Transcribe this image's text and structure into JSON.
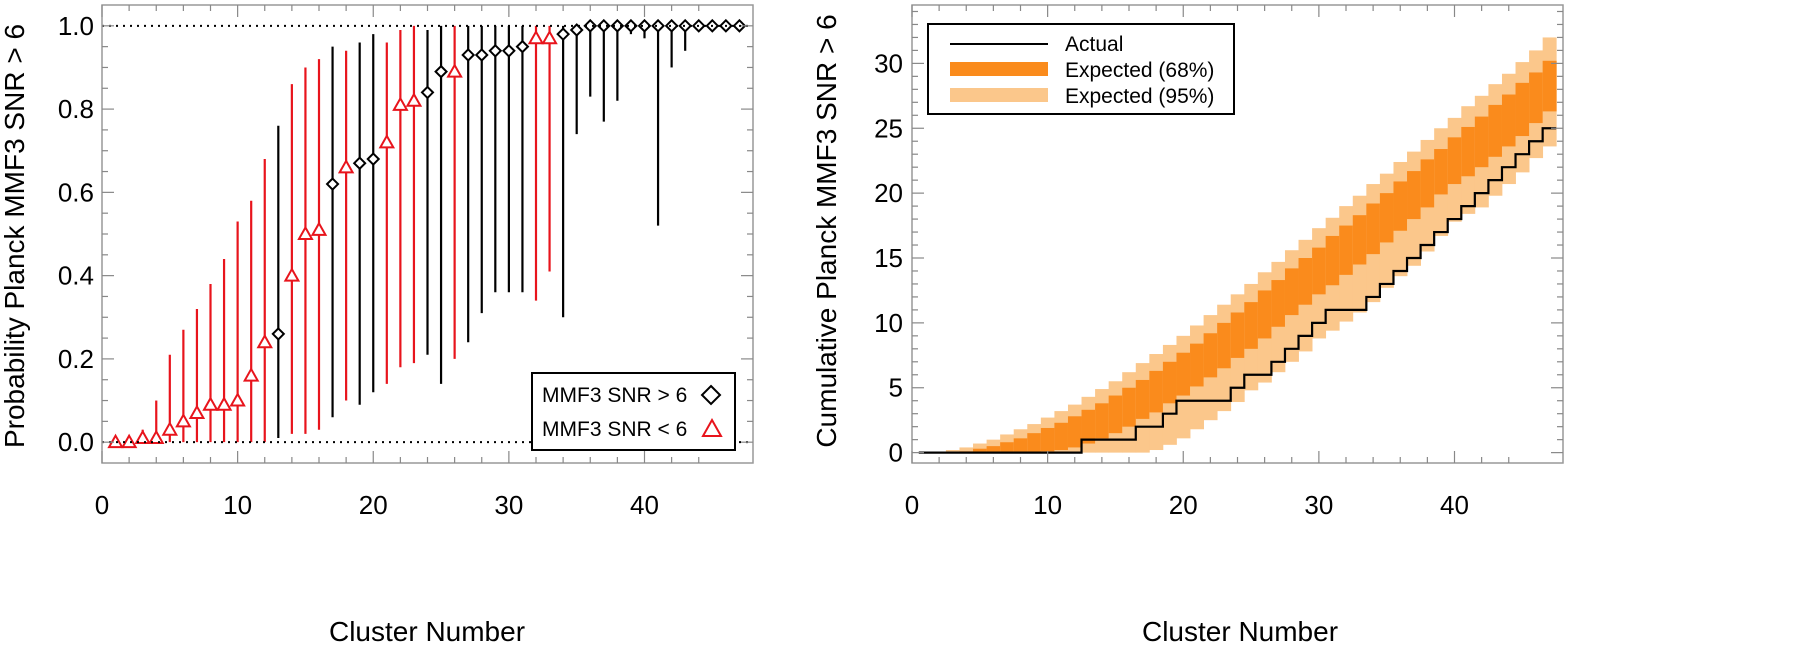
{
  "chart_data": [
    {
      "type": "scatter",
      "xlabel": "Cluster Number",
      "ylabel": "Probability Planck MMF3 SNR > 6",
      "xlim": [
        0,
        48
      ],
      "ylim": [
        -0.05,
        1.05
      ],
      "xticks": [
        "0",
        "10",
        "20",
        "30",
        "40"
      ],
      "yticks": [
        "0.0",
        "0.2",
        "0.4",
        "0.6",
        "0.8",
        "1.0"
      ],
      "reference_lines": [
        0,
        1
      ],
      "colors": {
        "above": "#000000",
        "below": "#e8141c"
      },
      "series": [
        {
          "name": "MMF3 SNR > 6",
          "marker": "diamond",
          "x": [
            13,
            17,
            19,
            20,
            24,
            25,
            27,
            28,
            29,
            30,
            31,
            34,
            35,
            36,
            37,
            38,
            39,
            40,
            41,
            42,
            43,
            44,
            45,
            46,
            47
          ],
          "y": [
            0.26,
            0.62,
            0.67,
            0.68,
            0.84,
            0.89,
            0.93,
            0.93,
            0.94,
            0.94,
            0.95,
            0.98,
            0.99,
            1.0,
            1.0,
            1.0,
            1.0,
            1.0,
            1.0,
            1.0,
            1.0,
            1.0,
            1.0,
            1.0,
            1.0
          ],
          "lo": [
            0.01,
            0.06,
            0.09,
            0.12,
            0.21,
            0.14,
            0.24,
            0.31,
            0.36,
            0.36,
            0.36,
            0.3,
            0.74,
            0.83,
            0.77,
            0.82,
            0.98,
            0.97,
            0.52,
            0.9,
            0.94,
            1.0,
            1.0,
            1.0,
            1.0
          ],
          "hi": [
            0.76,
            0.95,
            0.96,
            0.98,
            0.99,
            1.0,
            1.0,
            1.0,
            1.0,
            1.0,
            1.0,
            1.0,
            1.0,
            1.0,
            1.0,
            1.0,
            1.0,
            1.0,
            1.0,
            1.0,
            1.0,
            1.0,
            1.0,
            1.0,
            1.0
          ]
        },
        {
          "name": "MMF3 SNR < 6",
          "marker": "triangle",
          "x": [
            1,
            2,
            3,
            4,
            5,
            6,
            7,
            8,
            9,
            10,
            11,
            12,
            14,
            15,
            16,
            18,
            21,
            22,
            23,
            26,
            32,
            33
          ],
          "y": [
            0.0,
            0.0,
            0.01,
            0.01,
            0.03,
            0.05,
            0.07,
            0.09,
            0.09,
            0.1,
            0.16,
            0.24,
            0.4,
            0.5,
            0.51,
            0.66,
            0.72,
            0.81,
            0.82,
            0.89,
            0.97,
            0.97
          ],
          "lo": [
            0.0,
            0.0,
            0.0,
            0.0,
            0.0,
            0.0,
            0.0,
            0.0,
            0.0,
            0.0,
            0.0,
            0.0,
            0.02,
            0.02,
            0.03,
            0.1,
            0.14,
            0.18,
            0.19,
            0.2,
            0.34,
            0.41
          ],
          "hi": [
            0.01,
            0.01,
            0.03,
            0.1,
            0.21,
            0.27,
            0.32,
            0.38,
            0.44,
            0.53,
            0.58,
            0.68,
            0.86,
            0.9,
            0.92,
            0.94,
            0.96,
            0.99,
            1.0,
            1.0,
            1.0,
            1.0
          ]
        }
      ],
      "legend": {
        "position": "bottom-right",
        "entries": [
          "MMF3 SNR > 6",
          "MMF3 SNR < 6"
        ]
      }
    },
    {
      "type": "area",
      "xlabel": "Cluster Number",
      "ylabel": "Cumulative Planck MMF3 SNR > 6",
      "xlim": [
        0,
        48
      ],
      "ylim": [
        -0.8,
        34.5
      ],
      "xticks": [
        "0",
        "10",
        "20",
        "30",
        "40"
      ],
      "yticks": [
        "0",
        "5",
        "10",
        "15",
        "20",
        "25",
        "30"
      ],
      "colors": {
        "band68": "#fa8b1c",
        "band95": "#fbc78b",
        "actual": "#000000"
      },
      "x": [
        1,
        2,
        3,
        4,
        5,
        6,
        7,
        8,
        9,
        10,
        11,
        12,
        13,
        14,
        15,
        16,
        17,
        18,
        19,
        20,
        21,
        22,
        23,
        24,
        25,
        26,
        27,
        28,
        29,
        30,
        31,
        32,
        33,
        34,
        35,
        36,
        37,
        38,
        39,
        40,
        41,
        42,
        43,
        44,
        45,
        46,
        47
      ],
      "series": [
        {
          "name": "Expected (95%) low",
          "values": [
            0,
            0,
            0,
            0,
            0,
            0,
            0,
            0,
            0,
            0,
            0,
            0,
            0,
            0,
            0,
            0,
            0,
            0.2,
            0.6,
            1.1,
            1.8,
            2.5,
            3.2,
            3.9,
            4.8,
            5.4,
            6.2,
            7.0,
            7.8,
            8.8,
            9.4,
            10.1,
            10.8,
            11.6,
            12.7,
            13.6,
            14.4,
            15.5,
            16.7,
            17.8,
            18.4,
            18.9,
            19.8,
            20.7,
            21.6,
            22.7,
            23.6
          ]
        },
        {
          "name": "Expected (68%) low",
          "values": [
            0,
            0,
            0,
            0,
            0,
            0,
            0,
            0,
            0,
            0.1,
            0.2,
            0.4,
            0.7,
            1.1,
            1.5,
            2.0,
            2.6,
            3.1,
            3.8,
            4.4,
            5.1,
            5.8,
            6.5,
            7.3,
            8.0,
            8.8,
            9.7,
            10.6,
            11.4,
            12.2,
            12.9,
            13.7,
            14.5,
            15.3,
            16.2,
            17.1,
            18.0,
            18.9,
            19.9,
            20.7,
            21.3,
            22.0,
            22.8,
            23.6,
            24.4,
            25.4,
            26.3
          ]
        },
        {
          "name": "Expected (68%) high",
          "values": [
            0,
            0,
            0,
            0.1,
            0.3,
            0.5,
            0.8,
            1.1,
            1.5,
            1.9,
            2.3,
            2.8,
            3.3,
            3.8,
            4.4,
            5.0,
            5.6,
            6.3,
            7.0,
            7.7,
            8.4,
            9.2,
            10.0,
            10.8,
            11.6,
            12.5,
            13.3,
            14.2,
            15.0,
            15.8,
            16.7,
            17.5,
            18.3,
            19.2,
            20.0,
            20.9,
            21.7,
            22.6,
            23.4,
            24.3,
            25.1,
            25.9,
            26.8,
            27.6,
            28.5,
            29.3,
            30.2
          ]
        },
        {
          "name": "Expected (95%) high",
          "values": [
            0,
            0,
            0.2,
            0.4,
            0.7,
            1.0,
            1.4,
            1.8,
            2.2,
            2.7,
            3.2,
            3.7,
            4.3,
            4.9,
            5.5,
            6.2,
            6.9,
            7.6,
            8.3,
            9.0,
            9.8,
            10.6,
            11.4,
            12.2,
            13.0,
            13.9,
            14.7,
            15.6,
            16.4,
            17.3,
            18.1,
            19.0,
            19.8,
            20.7,
            21.5,
            22.4,
            23.2,
            24.1,
            25.0,
            25.8,
            26.7,
            27.5,
            28.4,
            29.2,
            30.1,
            31.0,
            32.0
          ]
        },
        {
          "name": "Actual",
          "values": [
            0,
            0,
            0,
            0,
            0,
            0,
            0,
            0,
            0,
            0,
            0,
            0,
            1,
            1,
            1,
            1,
            2,
            2,
            3,
            4,
            4,
            4,
            4,
            5,
            6,
            6,
            7,
            8,
            9,
            10,
            11,
            11,
            11,
            12,
            13,
            14,
            15,
            16,
            17,
            18,
            19,
            20,
            21,
            22,
            23,
            24,
            25
          ]
        }
      ],
      "legend": {
        "position": "top-left",
        "entries": [
          "Actual",
          "Expected (68%)",
          "Expected (95%)"
        ]
      }
    }
  ]
}
